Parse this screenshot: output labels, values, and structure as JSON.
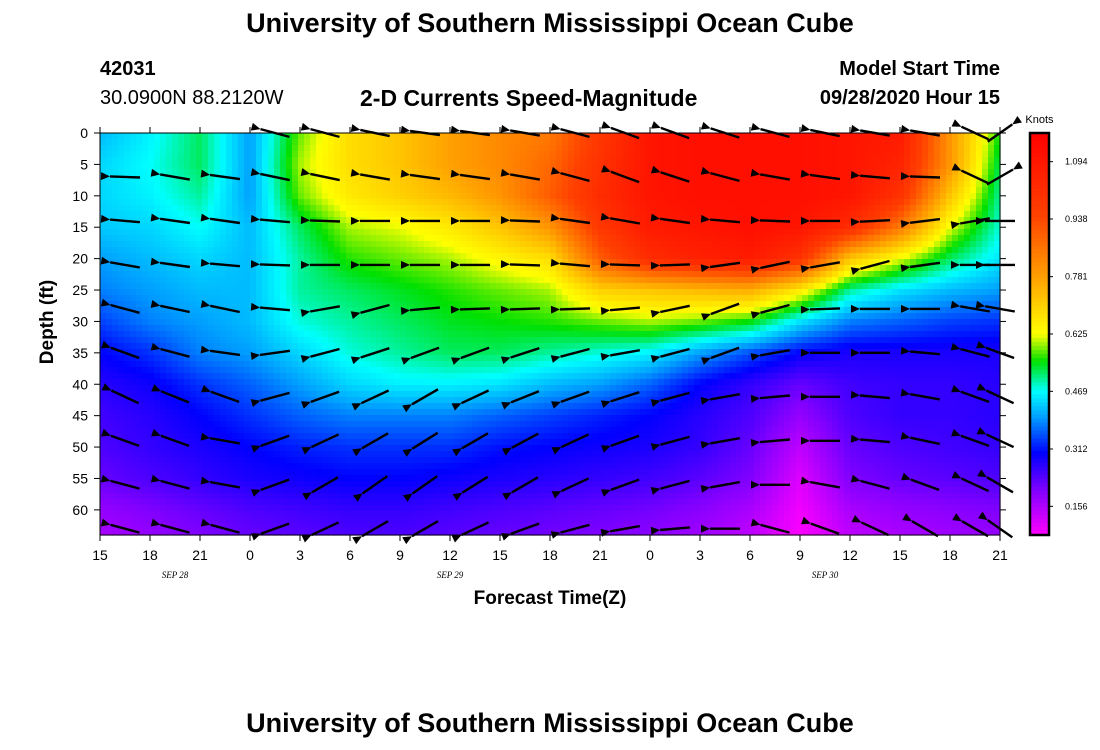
{
  "header": {
    "title": "University of Southern Mississippi Ocean Cube",
    "station_id": "42031",
    "coords": "30.0900N 88.2120W",
    "plot_title": "2-D Currents Speed-Magnitude",
    "model_start_label": "Model Start Time",
    "model_start_value": "09/28/2020 Hour 15"
  },
  "footer": {
    "title": "University of Southern Mississippi Ocean Cube"
  },
  "chart_data": {
    "type": "heatmap",
    "title": "2-D Currents Speed-Magnitude",
    "xlabel": "Forecast Time(Z)",
    "ylabel": "Depth (ft)",
    "x_hours_range": [
      0,
      54
    ],
    "x_tick_labels": [
      "15",
      "18",
      "21",
      "0",
      "3",
      "6",
      "9",
      "12",
      "15",
      "18",
      "21",
      "0",
      "3",
      "6",
      "9",
      "12",
      "15",
      "18",
      "21"
    ],
    "date_labels": [
      {
        "text": "SEP 28",
        "hour": 4.5
      },
      {
        "text": "SEP 29",
        "hour": 21
      },
      {
        "text": "SEP 30",
        "hour": 43.5
      }
    ],
    "y_range": [
      0,
      64
    ],
    "y_ticks": [
      0,
      5,
      10,
      15,
      20,
      25,
      30,
      35,
      40,
      45,
      50,
      55,
      60
    ],
    "colorbar": {
      "title": "Knots",
      "labels": [
        "1.094",
        "0.938",
        "0.781",
        "0.625",
        "0.469",
        "0.312",
        "0.156"
      ],
      "label_values": [
        1.094,
        0.938,
        0.781,
        0.625,
        0.469,
        0.312,
        0.156
      ],
      "range": [
        0.078,
        1.172
      ],
      "color_stops": [
        {
          "v": 0.078,
          "c": "#ff00ff"
        },
        {
          "v": 0.2,
          "c": "#8000ff"
        },
        {
          "v": 0.3,
          "c": "#0000ff"
        },
        {
          "v": 0.4,
          "c": "#00a0ff"
        },
        {
          "v": 0.469,
          "c": "#00ffff"
        },
        {
          "v": 0.55,
          "c": "#00e000"
        },
        {
          "v": 0.625,
          "c": "#ffff00"
        },
        {
          "v": 0.78,
          "c": "#ffa000"
        },
        {
          "v": 0.95,
          "c": "#ff4000"
        },
        {
          "v": 1.172,
          "c": "#ff0000"
        }
      ]
    },
    "speed_grid": {
      "x_hours": [
        0,
        3,
        6,
        9,
        12,
        15,
        18,
        21,
        24,
        27,
        30,
        33,
        36,
        39,
        42,
        45,
        48,
        51,
        54
      ],
      "depths": [
        0,
        5,
        10,
        15,
        20,
        25,
        30,
        35,
        40,
        45,
        50,
        55,
        60,
        64
      ],
      "knots": [
        [
          0.42,
          0.46,
          0.52,
          0.4,
          0.58,
          0.68,
          0.72,
          0.78,
          0.82,
          0.85,
          0.98,
          1.1,
          1.12,
          1.12,
          1.12,
          1.1,
          1.08,
          0.8,
          0.55
        ],
        [
          0.44,
          0.47,
          0.52,
          0.4,
          0.6,
          0.68,
          0.72,
          0.78,
          0.82,
          0.88,
          1.0,
          1.1,
          1.12,
          1.12,
          1.12,
          1.1,
          1.05,
          0.8,
          0.52
        ],
        [
          0.44,
          0.46,
          0.5,
          0.4,
          0.58,
          0.66,
          0.7,
          0.74,
          0.8,
          0.9,
          1.02,
          1.1,
          1.12,
          1.12,
          1.12,
          1.1,
          1.0,
          0.72,
          0.5
        ],
        [
          0.43,
          0.44,
          0.47,
          0.42,
          0.52,
          0.6,
          0.62,
          0.66,
          0.72,
          0.8,
          0.98,
          1.08,
          1.1,
          1.12,
          1.1,
          1.02,
          0.85,
          0.62,
          0.48
        ],
        [
          0.4,
          0.42,
          0.44,
          0.42,
          0.5,
          0.56,
          0.58,
          0.6,
          0.64,
          0.68,
          0.9,
          1.02,
          1.06,
          1.08,
          1.0,
          0.72,
          0.62,
          0.52,
          0.45
        ],
        [
          0.38,
          0.4,
          0.42,
          0.42,
          0.5,
          0.52,
          0.54,
          0.56,
          0.58,
          0.6,
          0.7,
          0.72,
          0.74,
          0.76,
          0.66,
          0.5,
          0.45,
          0.42,
          0.4
        ],
        [
          0.34,
          0.38,
          0.4,
          0.42,
          0.48,
          0.5,
          0.52,
          0.54,
          0.55,
          0.56,
          0.58,
          0.6,
          0.58,
          0.55,
          0.45,
          0.38,
          0.36,
          0.34,
          0.33
        ],
        [
          0.3,
          0.33,
          0.38,
          0.4,
          0.44,
          0.48,
          0.5,
          0.52,
          0.52,
          0.5,
          0.48,
          0.46,
          0.4,
          0.35,
          0.3,
          0.28,
          0.28,
          0.28,
          0.28
        ],
        [
          0.27,
          0.29,
          0.33,
          0.36,
          0.4,
          0.44,
          0.46,
          0.46,
          0.45,
          0.42,
          0.4,
          0.36,
          0.3,
          0.26,
          0.22,
          0.25,
          0.26,
          0.26,
          0.27
        ],
        [
          0.25,
          0.27,
          0.3,
          0.33,
          0.36,
          0.38,
          0.38,
          0.38,
          0.36,
          0.34,
          0.32,
          0.3,
          0.27,
          0.24,
          0.18,
          0.24,
          0.26,
          0.26,
          0.27
        ],
        [
          0.24,
          0.26,
          0.28,
          0.3,
          0.32,
          0.33,
          0.33,
          0.33,
          0.31,
          0.3,
          0.29,
          0.28,
          0.26,
          0.22,
          0.14,
          0.22,
          0.24,
          0.25,
          0.26
        ],
        [
          0.22,
          0.24,
          0.26,
          0.28,
          0.29,
          0.3,
          0.3,
          0.29,
          0.28,
          0.27,
          0.26,
          0.25,
          0.23,
          0.2,
          0.11,
          0.2,
          0.22,
          0.23,
          0.24
        ],
        [
          0.18,
          0.2,
          0.22,
          0.24,
          0.25,
          0.26,
          0.26,
          0.25,
          0.24,
          0.23,
          0.22,
          0.21,
          0.19,
          0.16,
          0.09,
          0.16,
          0.18,
          0.19,
          0.2
        ],
        [
          0.16,
          0.18,
          0.2,
          0.22,
          0.23,
          0.24,
          0.24,
          0.23,
          0.22,
          0.21,
          0.2,
          0.19,
          0.17,
          0.14,
          0.08,
          0.14,
          0.16,
          0.17,
          0.18
        ]
      ]
    },
    "vector_field": {
      "x_hours": [
        1.5,
        4.5,
        7.5,
        10.5,
        13.5,
        16.5,
        19.5,
        22.5,
        25.5,
        28.5,
        31.5,
        34.5,
        37.5,
        40.5,
        43.5,
        46.5,
        49.5,
        52.5,
        54
      ],
      "depths": [
        0,
        7,
        14,
        21,
        28,
        35,
        42,
        49,
        56,
        63
      ],
      "directions_deg": [
        [
          null,
          null,
          null,
          165,
          165,
          168,
          172,
          172,
          170,
          165,
          160,
          160,
          162,
          165,
          168,
          170,
          170,
          155,
          35
        ],
        [
          178,
          170,
          172,
          168,
          168,
          170,
          172,
          172,
          170,
          165,
          160,
          162,
          165,
          170,
          172,
          175,
          178,
          155,
          30
        ],
        [
          175,
          172,
          172,
          175,
          178,
          180,
          180,
          180,
          178,
          172,
          170,
          172,
          175,
          178,
          180,
          183,
          187,
          190,
          180
        ],
        [
          170,
          172,
          175,
          178,
          180,
          180,
          180,
          180,
          178,
          175,
          178,
          182,
          188,
          192,
          190,
          195,
          188,
          180,
          180
        ],
        [
          165,
          168,
          168,
          175,
          190,
          195,
          185,
          182,
          182,
          182,
          185,
          192,
          200,
          195,
          182,
          180,
          180,
          170,
          170
        ],
        [
          160,
          165,
          172,
          188,
          195,
          198,
          200,
          200,
          198,
          195,
          190,
          195,
          200,
          190,
          180,
          180,
          175,
          165,
          160
        ],
        [
          155,
          158,
          160,
          195,
          200,
          205,
          210,
          205,
          202,
          200,
          198,
          195,
          190,
          185,
          180,
          175,
          170,
          160,
          155
        ],
        [
          160,
          160,
          170,
          200,
          205,
          210,
          212,
          210,
          208,
          205,
          200,
          195,
          190,
          185,
          180,
          175,
          168,
          160,
          155
        ],
        [
          165,
          165,
          170,
          200,
          210,
          215,
          215,
          212,
          210,
          205,
          200,
          195,
          190,
          180,
          170,
          165,
          160,
          155,
          150
        ],
        [
          165,
          165,
          165,
          200,
          205,
          210,
          210,
          205,
          200,
          195,
          190,
          185,
          180,
          165,
          160,
          155,
          150,
          150,
          145
        ]
      ]
    }
  }
}
